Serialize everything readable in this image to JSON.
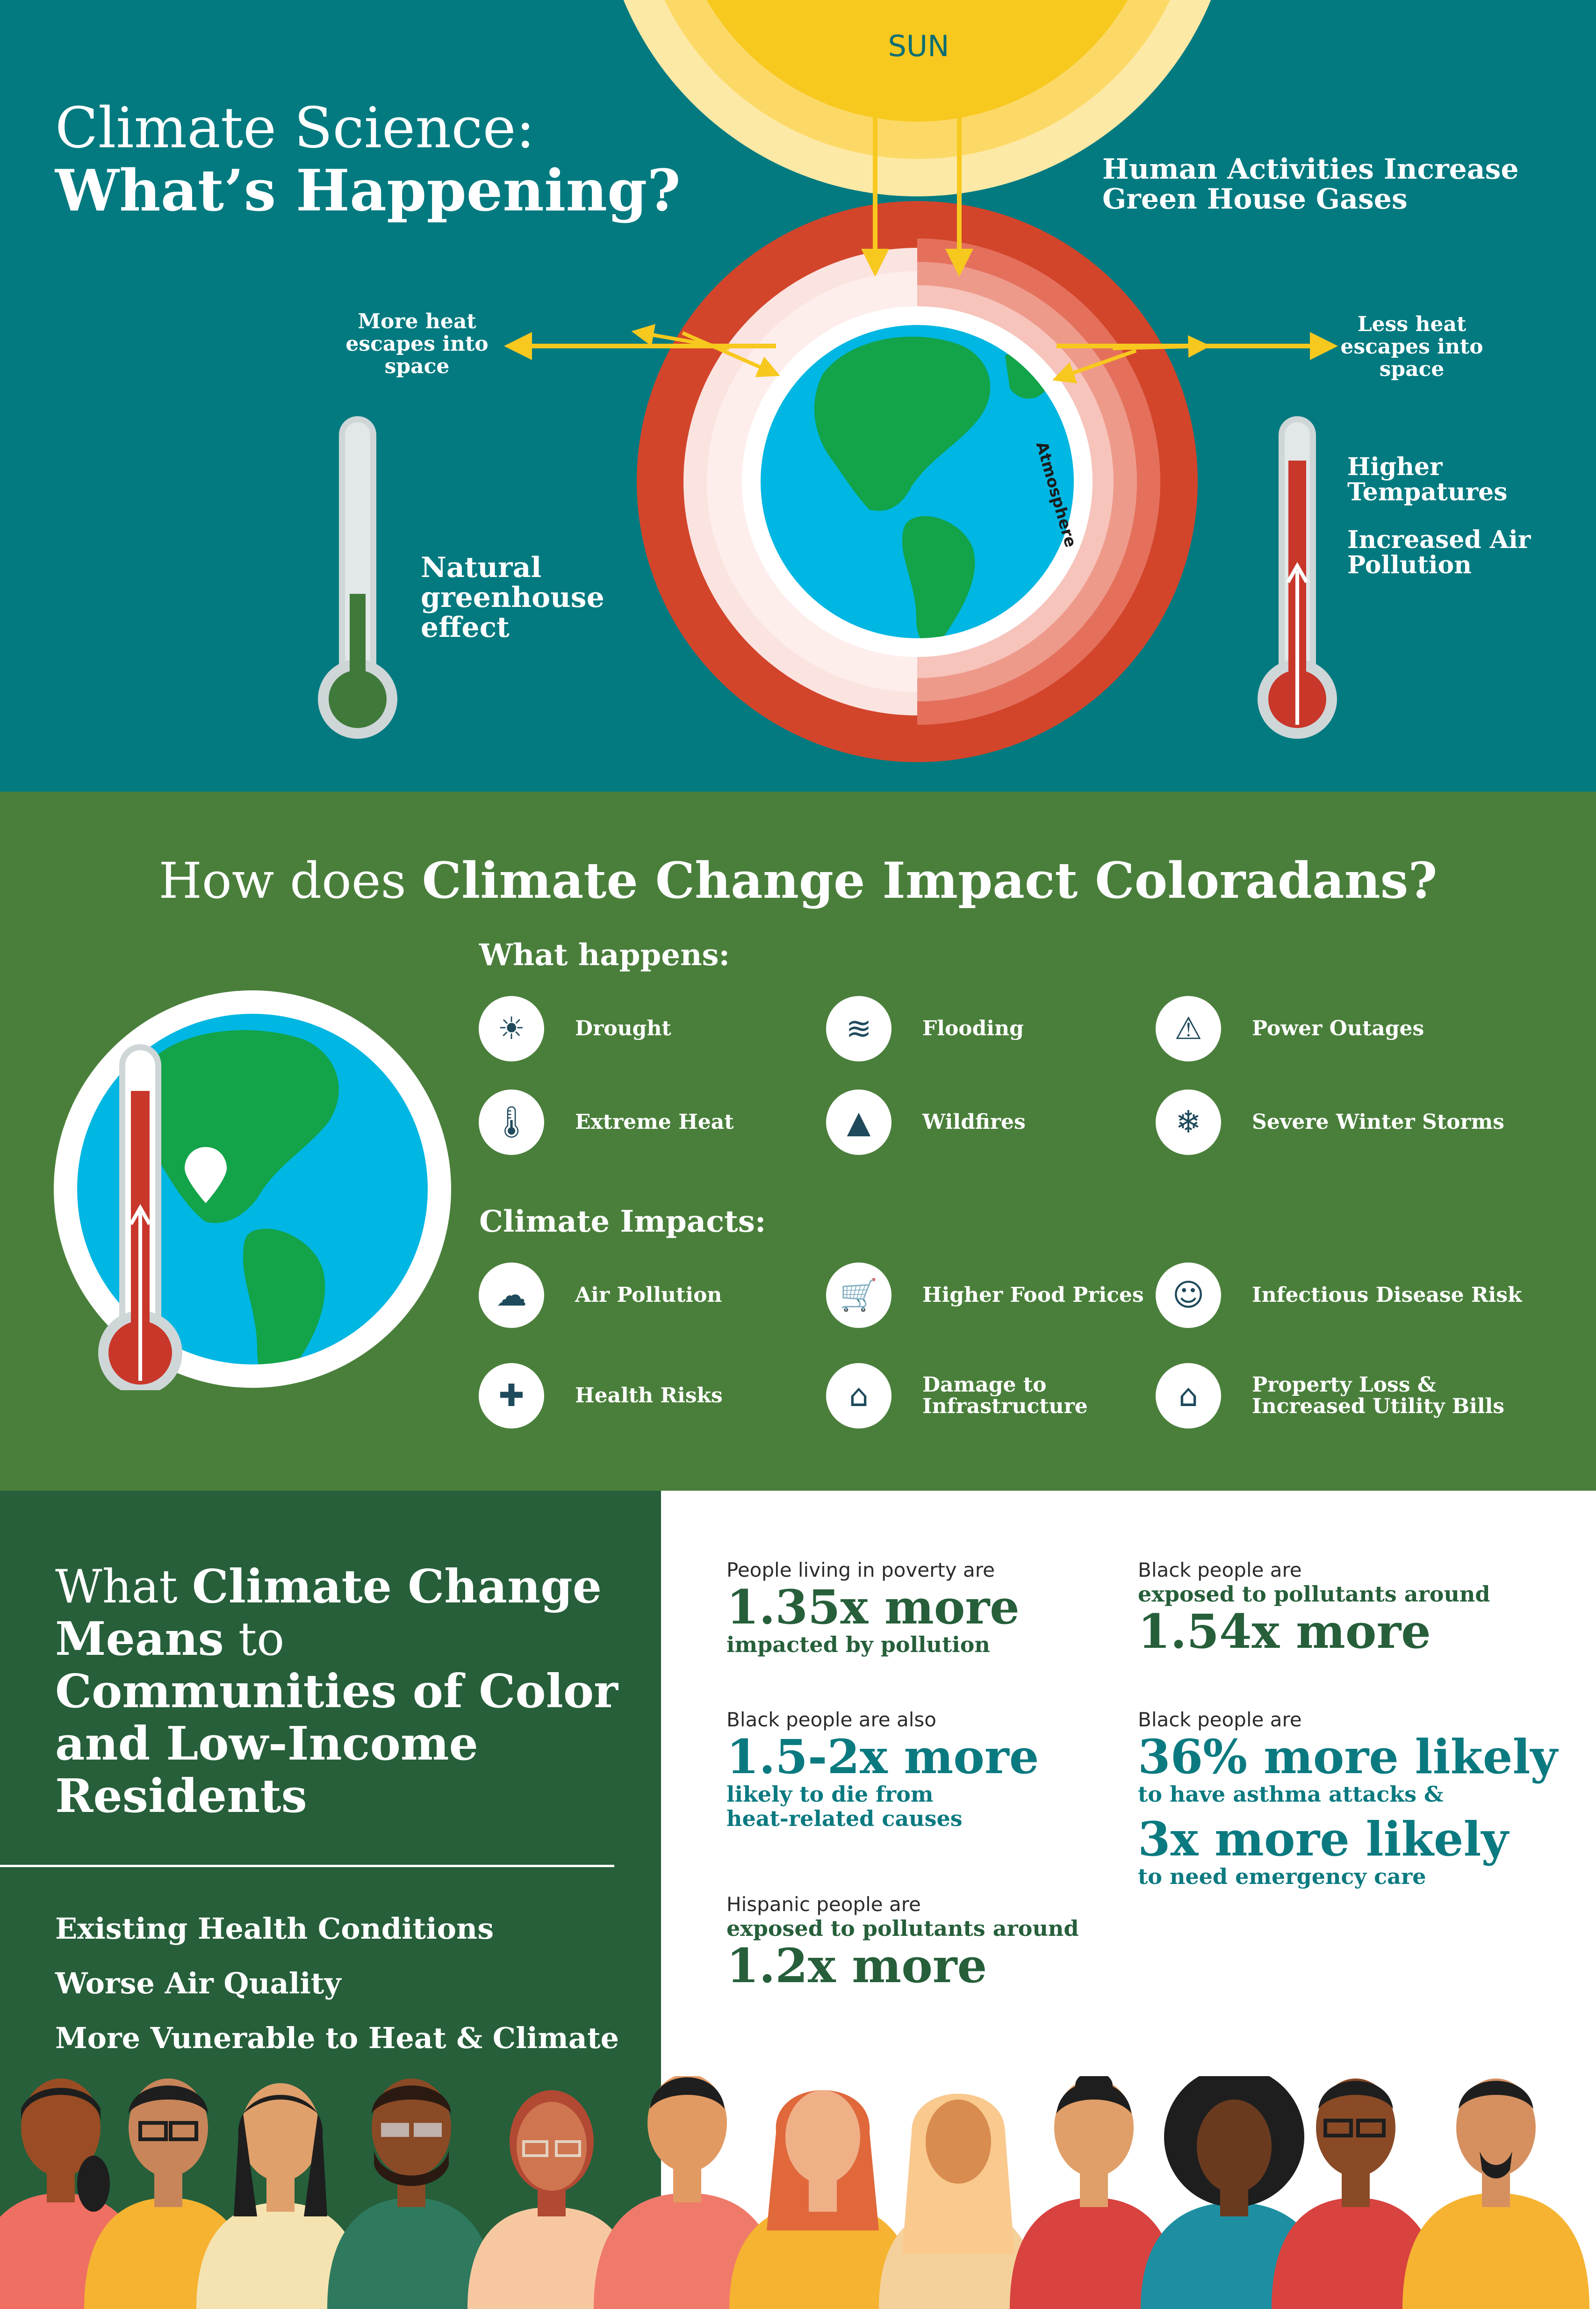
{
  "section1": {
    "title_light": "Climate Science:",
    "title_bold": "What’s Happening?",
    "sun_label": "SUN",
    "human_activities": "Human Activities Increase Green House Gases",
    "more_heat": "More heat escapes into space",
    "less_heat": "Less heat escapes into space",
    "atmosphere_label": "Atmosphere",
    "natural_effect": "Natural greenhouse effect",
    "higher_temps": "Higher Tempatures",
    "air_pollution": "Increased Air Pollution",
    "colors": {
      "background": "#027a80",
      "sun": "#f7c81e",
      "atmosphere_red": "#d2452b",
      "earth_ocean": "#00b6e2",
      "earth_land": "#13a349"
    }
  },
  "section2": {
    "title_light": "How does ",
    "title_bold": "Climate Change Impact Coloradans?",
    "what_happens_heading": "What happens:",
    "what_happens": [
      {
        "label": "Drought",
        "icon": "drought-icon"
      },
      {
        "label": "Flooding",
        "icon": "flooding-icon"
      },
      {
        "label": "Power Outages",
        "icon": "power-outage-icon"
      },
      {
        "label": "Extreme Heat",
        "icon": "extreme-heat-icon"
      },
      {
        "label": "Wildfires",
        "icon": "wildfire-icon"
      },
      {
        "label": "Severe Winter Storms",
        "icon": "snowflake-icon"
      }
    ],
    "impacts_heading": "Climate Impacts:",
    "impacts": [
      {
        "label": "Air Pollution",
        "icon": "co2-cloud-icon"
      },
      {
        "label": "Higher Food Prices",
        "icon": "food-prices-icon"
      },
      {
        "label": "Infectious Disease Risk",
        "icon": "face-mask-icon"
      },
      {
        "label": "Health Risks",
        "icon": "first-aid-kit-icon"
      },
      {
        "label": "Damage to Infrastructure",
        "icon": "infrastructure-icon"
      },
      {
        "label": "Property Loss & Increased Utility Bills",
        "icon": "house-loss-icon"
      }
    ],
    "colors": {
      "background": "#4a7f3b"
    }
  },
  "section3": {
    "title_parts": {
      "p1": "What ",
      "p2": "Climate Change Means",
      "p3": " to ",
      "p4": "Communities of Color and Low-Income Residents"
    },
    "bullets": [
      "Existing Health Conditions",
      "Worse Air Quality",
      "More Vunerable to Heat & Climate"
    ],
    "stats": {
      "poverty": {
        "pre": "People living in poverty are",
        "big": "1.35x more",
        "post": "impacted by pollution"
      },
      "black_pollutants": {
        "pre": "Black people are",
        "mid": "exposed to pollutants around",
        "big": "1.54x more"
      },
      "black_heat": {
        "pre": "Black people are also",
        "big": "1.5-2x more",
        "post1": "likely to die from",
        "post2": "heat-related causes"
      },
      "black_asthma": {
        "pre": "Black people are",
        "big1": "36% more likely",
        "post1": "to have asthma attacks &",
        "big2": "3x more likely",
        "post2": "to need emergency care"
      },
      "hispanic": {
        "pre": "Hispanic people are",
        "mid": "exposed to pollutants around",
        "big": "1.2x more"
      }
    },
    "colors": {
      "left_bg": "#265f3a",
      "dark_green": "#265f3a",
      "teal": "#0b7a80"
    }
  }
}
